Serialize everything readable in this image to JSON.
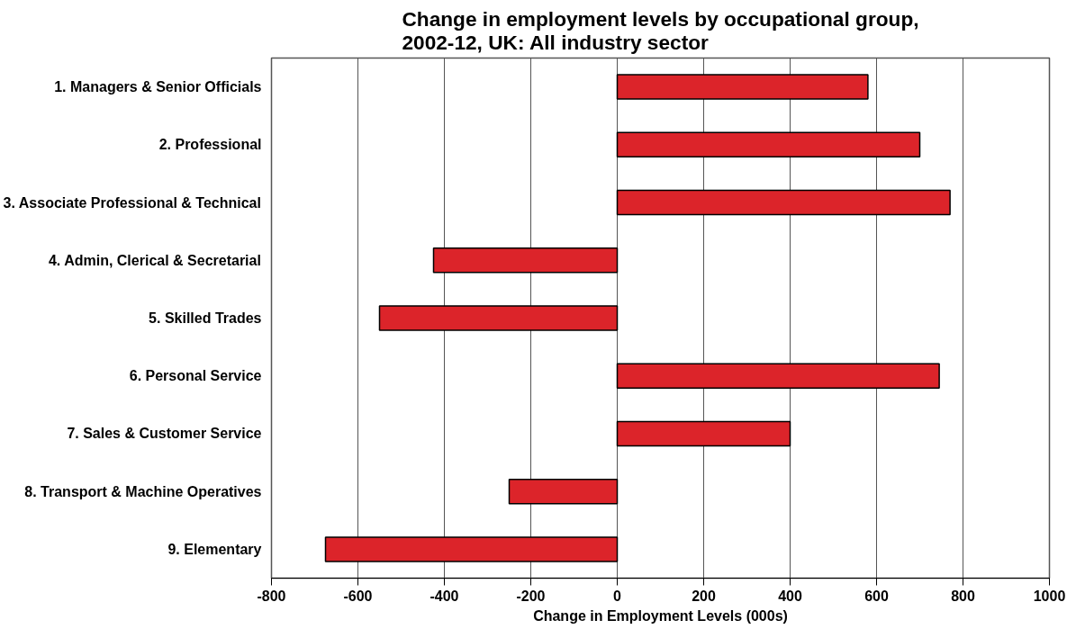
{
  "chart_data": {
    "type": "bar",
    "orientation": "horizontal",
    "title": "Change in employment levels by occupational group,\n2002-12, UK: All industry sector",
    "xlabel": "Change in Employment Levels (000s)",
    "categories": [
      "1. Managers & Senior Officials",
      "2. Professional",
      "3. Associate Professional & Technical",
      "4. Admin, Clerical & Secretarial",
      "5. Skilled Trades",
      "6. Personal Service",
      "7. Sales & Customer Service",
      "8. Transport & Machine Operatives",
      "9. Elementary"
    ],
    "values": [
      580,
      700,
      770,
      -425,
      -550,
      745,
      400,
      -250,
      -675
    ],
    "color": "#dc242a",
    "xlim": [
      -800,
      1000
    ],
    "xticks": [
      -800,
      -600,
      -400,
      -200,
      0,
      200,
      400,
      600,
      800,
      1000
    ],
    "grid": "x"
  }
}
